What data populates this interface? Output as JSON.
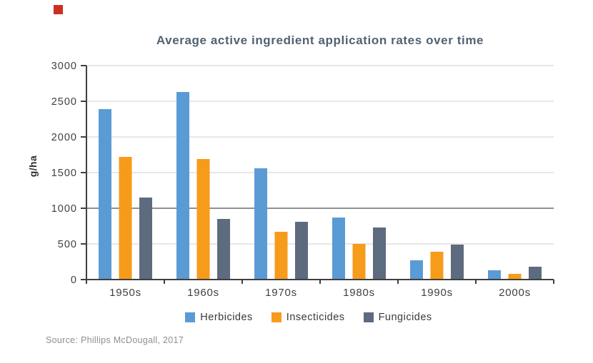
{
  "page": {
    "title": "Average active ingredient application rates over time",
    "source": "Source: Phillips McDougall, 2017"
  },
  "marker_color": "#cb2e22",
  "chart_data": {
    "type": "bar",
    "title": "Average active ingredient application rates over time",
    "xlabel": "",
    "ylabel": "g/ha",
    "categories": [
      "1950s",
      "1960s",
      "1970s",
      "1980s",
      "1990s",
      "2000s"
    ],
    "series": [
      {
        "name": "Herbicides",
        "color": "#5b9bd5",
        "values": [
          2390,
          2630,
          1560,
          870,
          270,
          130
        ]
      },
      {
        "name": "Insecticides",
        "color": "#f79b1b",
        "values": [
          1720,
          1690,
          670,
          500,
          390,
          80
        ]
      },
      {
        "name": "Fungicides",
        "color": "#5d6b7e",
        "values": [
          1150,
          850,
          810,
          730,
          490,
          180
        ]
      }
    ],
    "ylim": [
      0,
      3000
    ],
    "ytick_step": 500,
    "grid": "horizontal",
    "emphasized_gridline": 1000,
    "legend_position": "bottom",
    "axis_color": "#3f3f3f",
    "gridline_color": "#cfcfcf",
    "emphasized_gridline_color": "#6b6b6b"
  }
}
